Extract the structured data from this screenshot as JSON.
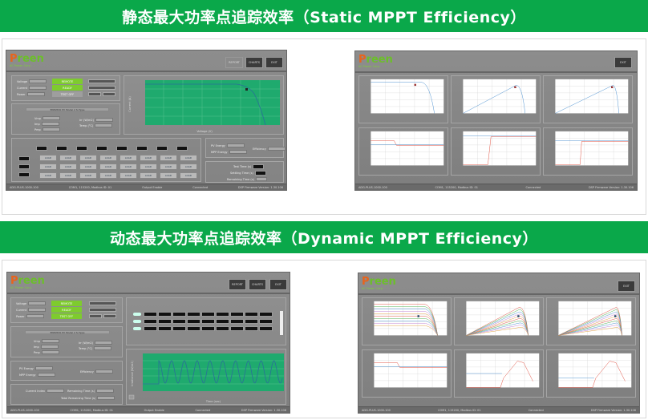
{
  "banners": {
    "static": "静态最大功率点追踪效率（Static MPPT Efficiency）",
    "dynamic": "动态最大功率点追踪效率（Dynamic MPPT Efficiency）"
  },
  "logo": {
    "brand_p": "P",
    "brand_rest": "reen",
    "tagline": "AC Power Corp."
  },
  "buttons": {
    "report": "REPORT",
    "charts": "CHARTS",
    "exit": "EXIT"
  },
  "readings": {
    "voltage_label": "Voltage",
    "current_label": "Current",
    "power_label": "Power",
    "remote": "REMOTE",
    "ready": "READY",
    "test_off": "TEST OFF"
  },
  "pv_model": {
    "title": "EN50530 PV Model 2 Si Type",
    "vmp": "Vmp",
    "imp": "Imp",
    "pmp": "Pmp",
    "irr": "Irr (W/m2)",
    "temp": "Temp (°C)"
  },
  "energy": {
    "pv_energy": "PV Energy",
    "mpp_energy": "MPP Energy",
    "efficiency": "Efficiency"
  },
  "timers": {
    "test_time": "Test Time (s)",
    "settling_time": "Settling Time (s)",
    "remaining_time": "Remaining Time (s)",
    "current_index": "Current Index",
    "total_remaining": "Total Remaining Time (s)"
  },
  "load_button": "LOAD",
  "static_axis": {
    "x": "Voltage (V)",
    "y": "Current (A)"
  },
  "dynamic_axis": {
    "x": "Time (sec)",
    "y": "Irradiance (W/m2)"
  },
  "status_bar": {
    "model": "ADG-PLUS-1000-100",
    "port": "COM1, 115200, Modbus ID: 01",
    "output": "Output Enable",
    "connection": "Connected",
    "firmware": "DSP Firmware Version: 1.30.106"
  },
  "colors": {
    "banner": "#0aa84a",
    "chart_bg": "#1faa6e",
    "status_green": "#7ecb2e",
    "curve_blue": "#4a8fd0",
    "curve_red": "#e05040"
  }
}
